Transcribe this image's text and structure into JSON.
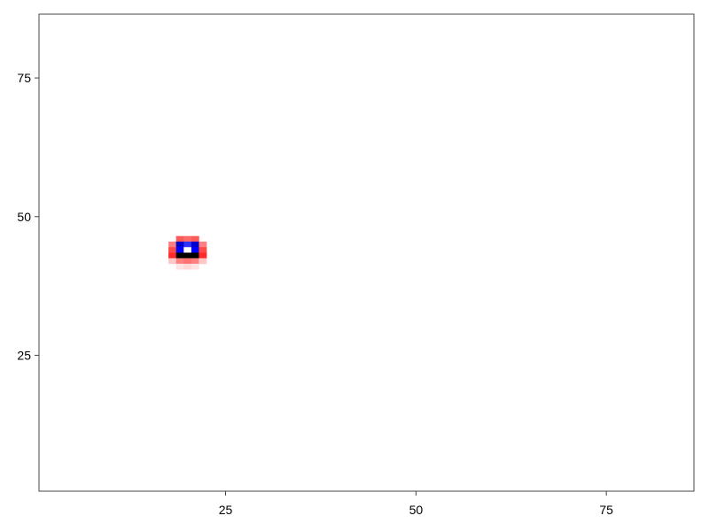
{
  "chart_data": {
    "type": "heatmap",
    "title": "",
    "xlabel": "",
    "ylabel": "",
    "xlim": [
      0.5,
      86.5
    ],
    "ylim": [
      0.5,
      86.5
    ],
    "xticks": [
      25,
      50,
      75
    ],
    "yticks": [
      25,
      50,
      75
    ],
    "xtick_labels": [
      "25",
      "50",
      "75"
    ],
    "ytick_labels": [
      "25",
      "50",
      "75"
    ],
    "grid": false,
    "colorbar": false,
    "cells": [
      {
        "x": 19,
        "y": 46,
        "color": "#ff5a5a"
      },
      {
        "x": 20,
        "y": 46,
        "color": "#ff6a6a"
      },
      {
        "x": 21,
        "y": 46,
        "color": "#ff5a5a"
      },
      {
        "x": 18,
        "y": 45,
        "color": "#ff8080"
      },
      {
        "x": 19,
        "y": 45,
        "color": "#0000cc"
      },
      {
        "x": 20,
        "y": 45,
        "color": "#3030ff"
      },
      {
        "x": 21,
        "y": 45,
        "color": "#0000cc"
      },
      {
        "x": 22,
        "y": 45,
        "color": "#ff8080"
      },
      {
        "x": 18,
        "y": 44,
        "color": "#ff4a4a"
      },
      {
        "x": 19,
        "y": 44,
        "color": "#0000ff"
      },
      {
        "x": 20,
        "y": 44,
        "color": "#ffffff"
      },
      {
        "x": 21,
        "y": 44,
        "color": "#0000ff"
      },
      {
        "x": 22,
        "y": 44,
        "color": "#ff4a4a"
      },
      {
        "x": 18,
        "y": 43,
        "color": "#ff2a2a"
      },
      {
        "x": 19,
        "y": 43,
        "color": "#000000"
      },
      {
        "x": 20,
        "y": 43,
        "color": "#000000"
      },
      {
        "x": 21,
        "y": 43,
        "color": "#000000"
      },
      {
        "x": 22,
        "y": 43,
        "color": "#ff2a2a"
      },
      {
        "x": 18,
        "y": 42,
        "color": "#ffc8c8"
      },
      {
        "x": 19,
        "y": 42,
        "color": "#ff8080"
      },
      {
        "x": 20,
        "y": 42,
        "color": "#ff7070"
      },
      {
        "x": 21,
        "y": 42,
        "color": "#ff8080"
      },
      {
        "x": 22,
        "y": 42,
        "color": "#ffc8c8"
      },
      {
        "x": 19,
        "y": 41,
        "color": "#ffe4e4"
      },
      {
        "x": 20,
        "y": 41,
        "color": "#ffd8d8"
      },
      {
        "x": 21,
        "y": 41,
        "color": "#ffe4e4"
      }
    ]
  }
}
